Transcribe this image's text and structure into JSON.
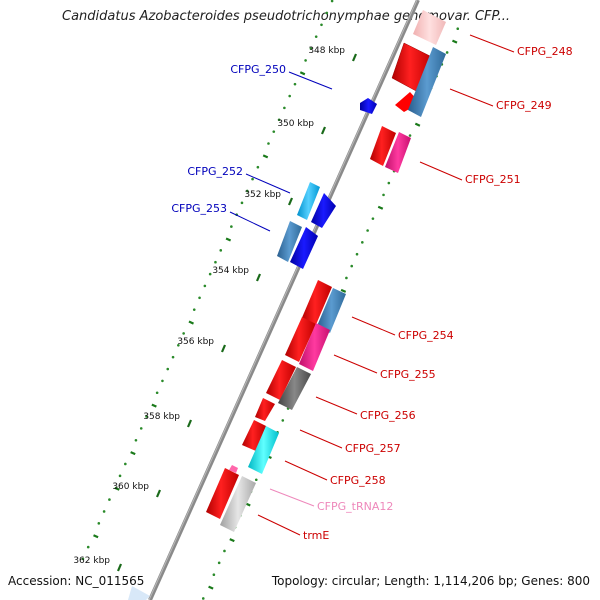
{
  "header": {
    "title": "Candidatus Azobacteroides pseudotrichonymphae genomovar. CFP..."
  },
  "footer": {
    "accession": "Accession: NC_011565",
    "summary": "Topology: circular; Length: 1,114,206 bp; Genes: 800"
  },
  "ruler": {
    "ticks": [
      {
        "label": "348 kbp"
      },
      {
        "label": "350 kbp"
      },
      {
        "label": "352 kbp"
      },
      {
        "label": "354 kbp"
      },
      {
        "label": "356 kbp"
      },
      {
        "label": "358 kbp"
      },
      {
        "label": "360 kbp"
      },
      {
        "label": "362 kbp"
      }
    ]
  },
  "genes": [
    {
      "label": "CFPG_248",
      "color": "#cc0000"
    },
    {
      "label": "CFPG_249",
      "color": "#cc0000"
    },
    {
      "label": "CFPG_250",
      "color": "#0000bb"
    },
    {
      "label": "CFPG_251",
      "color": "#cc0000"
    },
    {
      "label": "CFPG_252",
      "color": "#0000bb"
    },
    {
      "label": "CFPG_253",
      "color": "#0000bb"
    },
    {
      "label": "CFPG_254",
      "color": "#cc0000"
    },
    {
      "label": "CFPG_255",
      "color": "#cc0000"
    },
    {
      "label": "CFPG_256",
      "color": "#cc0000"
    },
    {
      "label": "CFPG_257",
      "color": "#cc0000"
    },
    {
      "label": "CFPG_258",
      "color": "#cc0000"
    },
    {
      "label": "CFPG_tRNA12",
      "color": "#ee88bb"
    },
    {
      "label": "trmE",
      "color": "#cc0000"
    }
  ],
  "colors": {
    "backbone": "#808080",
    "cds_forward": "#ff0000",
    "cds_blast": "#4682b4",
    "cds_reverse": "#0000ee",
    "cds_pink": "#ff1493",
    "cds_gray": "#666666",
    "cds_cyan": "#00e5ee",
    "cds_light_gray": "#bbbbbb",
    "cds_light_blue": "#1fb5ee",
    "trna": "#ff88cc",
    "gc_dots": "#228b22"
  }
}
